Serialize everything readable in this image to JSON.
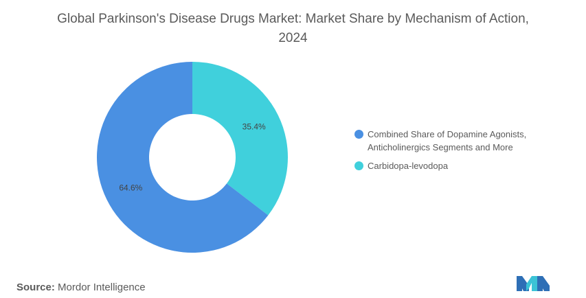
{
  "chart_data": {
    "type": "pie",
    "title": "Global Parkinson's Disease Drugs Market: Market Share by Mechanism of Action, 2024",
    "series": [
      {
        "name": "Combined Share of Dopamine Agonists, Anticholinergics Segments and More",
        "value": 64.6,
        "label": "64.6%",
        "color": "#4a90e2"
      },
      {
        "name": "Carbidopa-levodopa",
        "value": 35.4,
        "label": "35.4%",
        "color": "#40d0dc"
      }
    ],
    "donut": true,
    "legend_position": "right"
  },
  "legend": [
    {
      "label": "Combined Share of Dopamine Agonists, Anticholinergics Segments and More",
      "color": "#4a90e2"
    },
    {
      "label": "Carbidopa-levodopa",
      "color": "#40d0dc"
    }
  ],
  "source": {
    "label": "Source:",
    "text": "Mordor Intelligence"
  },
  "logo": {
    "icon": "mordor-intelligence-logo"
  }
}
